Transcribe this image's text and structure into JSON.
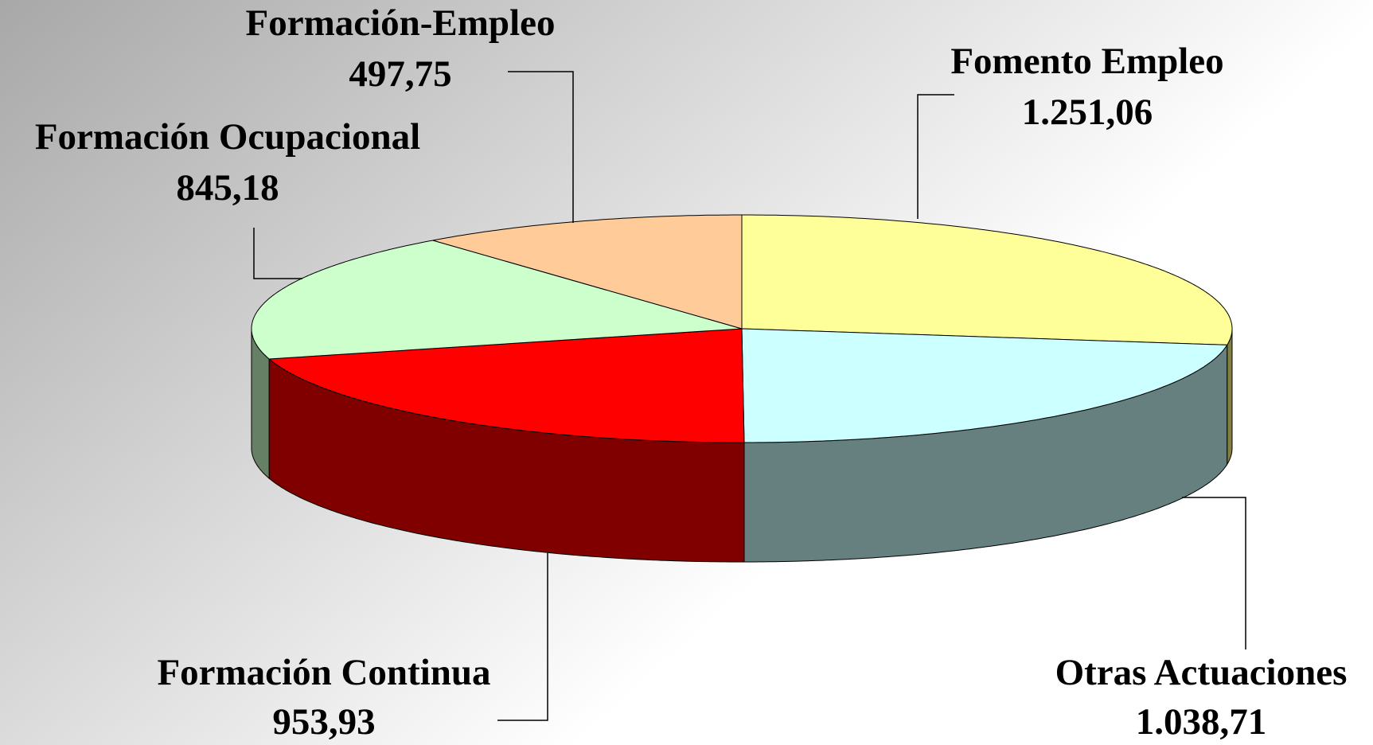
{
  "chart_data": {
    "type": "pie3d",
    "categories": [
      "Fomento Empleo",
      "Otras Actuaciones",
      "Formación Continua",
      "Formación Ocupacional",
      "Formación-Empleo"
    ],
    "values": [
      1251.06,
      1038.71,
      953.93,
      845.18,
      497.75
    ],
    "value_labels": [
      "1.251,06",
      "1.038,71",
      "953,93",
      "845,18",
      "497,75"
    ],
    "colors": [
      "#ffff99",
      "#ccffff",
      "#ff0000",
      "#ccffcc",
      "#ffcc99"
    ],
    "side_colors": [
      "#808040",
      "#668080",
      "#800000",
      "#668066",
      "#806650"
    ]
  }
}
